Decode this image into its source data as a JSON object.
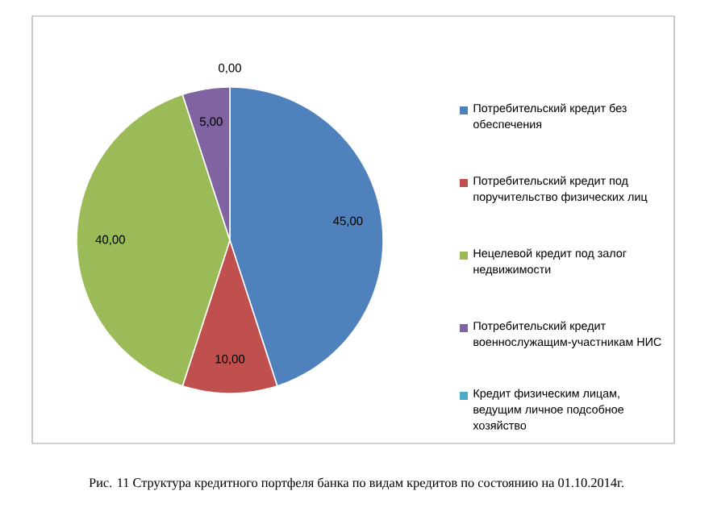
{
  "chart_data": {
    "type": "pie",
    "categories": [
      "Потребительский кредит без обеспечения",
      "Потребительский кредит под поручительство физических лиц",
      "Нецелевой кредит под залог недвижимости",
      "Потребительский кредит военнослужащим-участникам НИС",
      "Кредит физическим лицам, ведущим личное подсобное хозяйство"
    ],
    "values": [
      45,
      10,
      40,
      5,
      0
    ],
    "value_labels": [
      "45,00",
      "10,00",
      "40,00",
      "5,00",
      "0,00"
    ],
    "colors": [
      "#4f81bd",
      "#c0504d",
      "#9bbb59",
      "#8064a2",
      "#4bacc6"
    ],
    "legend": "right",
    "annotations": [
      "Рис. 11 Структура кредитного портфеля банка по видам кредитов по состоянию на 01.10.2014г."
    ]
  }
}
